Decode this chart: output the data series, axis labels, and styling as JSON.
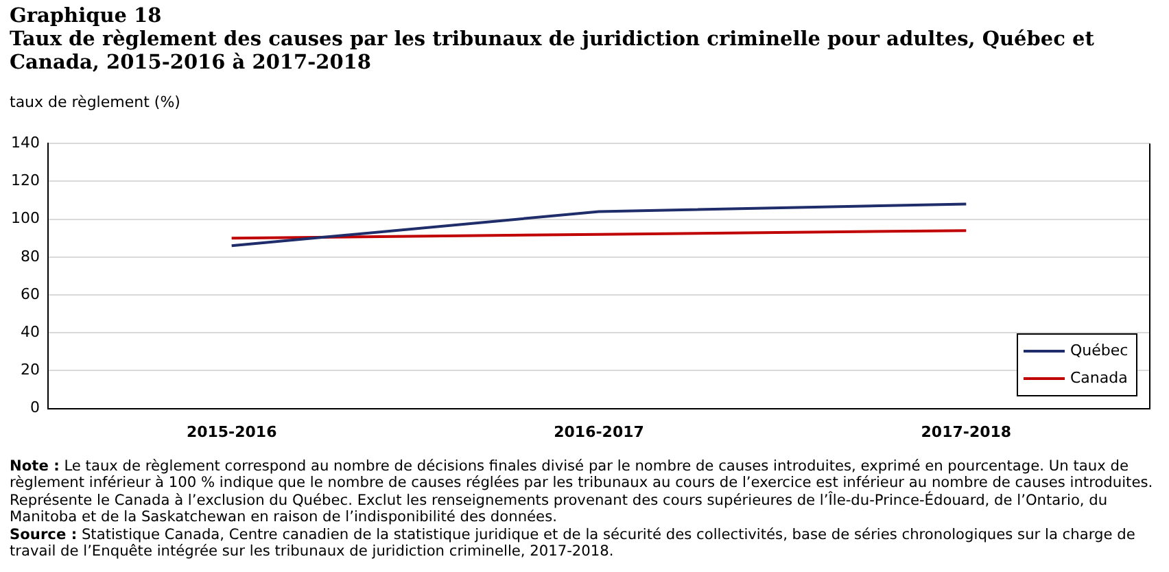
{
  "chart_data": {
    "type": "line",
    "title": "Graphique  18",
    "subtitle": "Taux de règlement des causes par les tribunaux de juridiction  criminelle  pour  adultes, Québec et Canada, 2015-2016 à 2017-2018",
    "ylabel": "taux de règlement (%)",
    "categories": [
      "2015-2016",
      "2016-2017",
      "2017-2018"
    ],
    "series": [
      {
        "name": "Québec",
        "color": "#1f2d6b",
        "values": [
          86,
          104,
          108
        ]
      },
      {
        "name": "Canada",
        "color": "#c00000",
        "values": [
          90,
          92,
          94
        ]
      }
    ],
    "ylim": [
      0,
      140
    ],
    "yticks": [
      0,
      20,
      40,
      60,
      80,
      100,
      120,
      140
    ],
    "grid": "y",
    "legend": "bottom right",
    "marker": "none",
    "line_style": "solid",
    "annotations": [
      "Note : Le taux de règlement correspond au nombre de décisions finales divisé par le nombre de causes introduites, exprimé en pourcentage. Un taux de règlement inférieur à 100 % indique que le nombre de causes réglées par les tribunaux au cours de l’exercice est inférieur au nombre de causes introduites. Représente le Canada à l’exclusion du Québec. Exclut les renseignements provenant des cours supérieures de l’Île-du-Prince-Édouard, de l’Ontario, du Manitoba et de la Saskatchewan en raison de l’indisponibilité des données.",
      "Source : Statistique Canada, Centre canadien de la statistique juridique et de la sécurité des collectivités, base de séries chronologiques sur la charge de travail de l’Enquête intégrée sur les tribunaux de juridiction criminelle, 2017-2018."
    ]
  }
}
